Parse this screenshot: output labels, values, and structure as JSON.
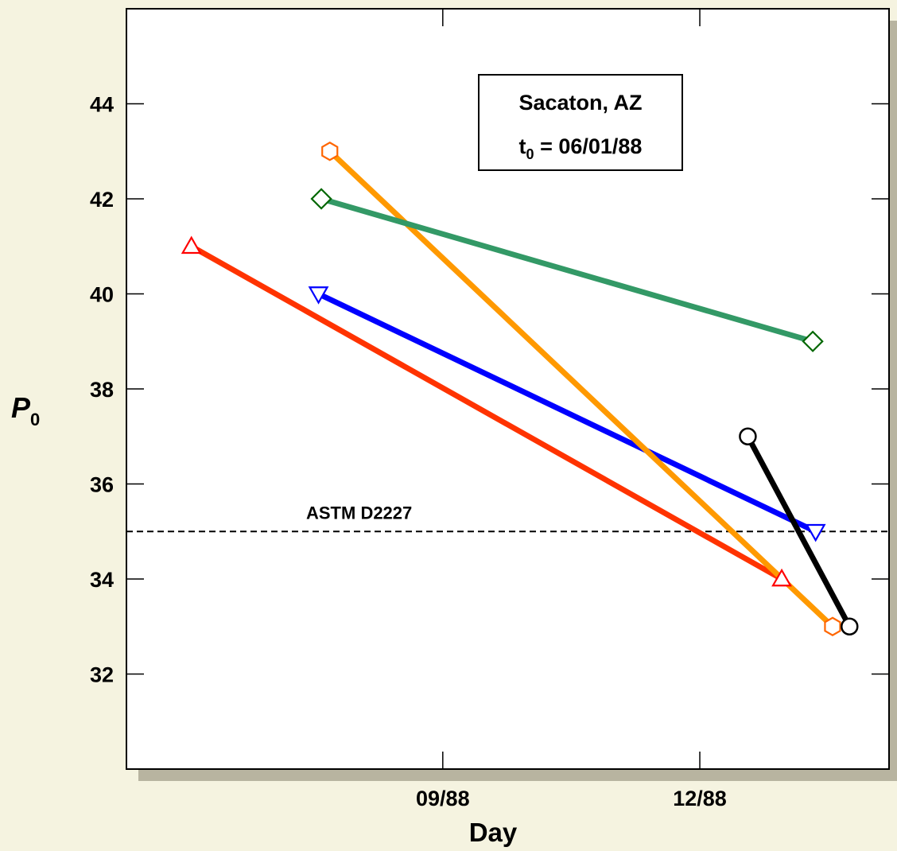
{
  "chart_data": {
    "type": "line",
    "xlabel": "Day",
    "ylabel": {
      "main": "P",
      "sub": "0"
    },
    "x_ticks": [
      "09/88",
      "12/88"
    ],
    "x_tick_days": [
      92,
      183
    ],
    "xlim": [
      -20,
      250
    ],
    "y_ticks": [
      "32",
      "34",
      "36",
      "38",
      "40",
      "42",
      "44"
    ],
    "ylim": [
      30,
      46
    ],
    "legend_box": {
      "line1": "Sacaton, AZ",
      "line2_main": "t",
      "line2_sub": "0",
      "line2_rest": " = 06/01/88",
      "placement": "top-right"
    },
    "reference_line": {
      "label": "ASTM D2227",
      "y": 35,
      "style": "dashed",
      "color": "#000000"
    },
    "series": [
      {
        "marker": "triangle-up",
        "line_color": "#ff3300",
        "marker_color": "#ff0000",
        "points": [
          [
            3,
            41
          ],
          [
            212,
            34
          ]
        ]
      },
      {
        "marker": "triangle-down",
        "line_color": "#0000ff",
        "marker_color": "#0000ff",
        "points": [
          [
            48,
            40
          ],
          [
            224,
            35
          ]
        ]
      },
      {
        "marker": "hexagon",
        "line_color": "#ff9900",
        "marker_color": "#ff6600",
        "points": [
          [
            52,
            43
          ],
          [
            230,
            33
          ]
        ]
      },
      {
        "marker": "diamond",
        "line_color": "#339966",
        "marker_color": "#006600",
        "points": [
          [
            49,
            42
          ],
          [
            223,
            39
          ]
        ]
      },
      {
        "marker": "circle",
        "line_color": "#000000",
        "marker_color": "#000000",
        "points": [
          [
            200,
            37
          ],
          [
            236,
            33
          ]
        ]
      }
    ]
  }
}
